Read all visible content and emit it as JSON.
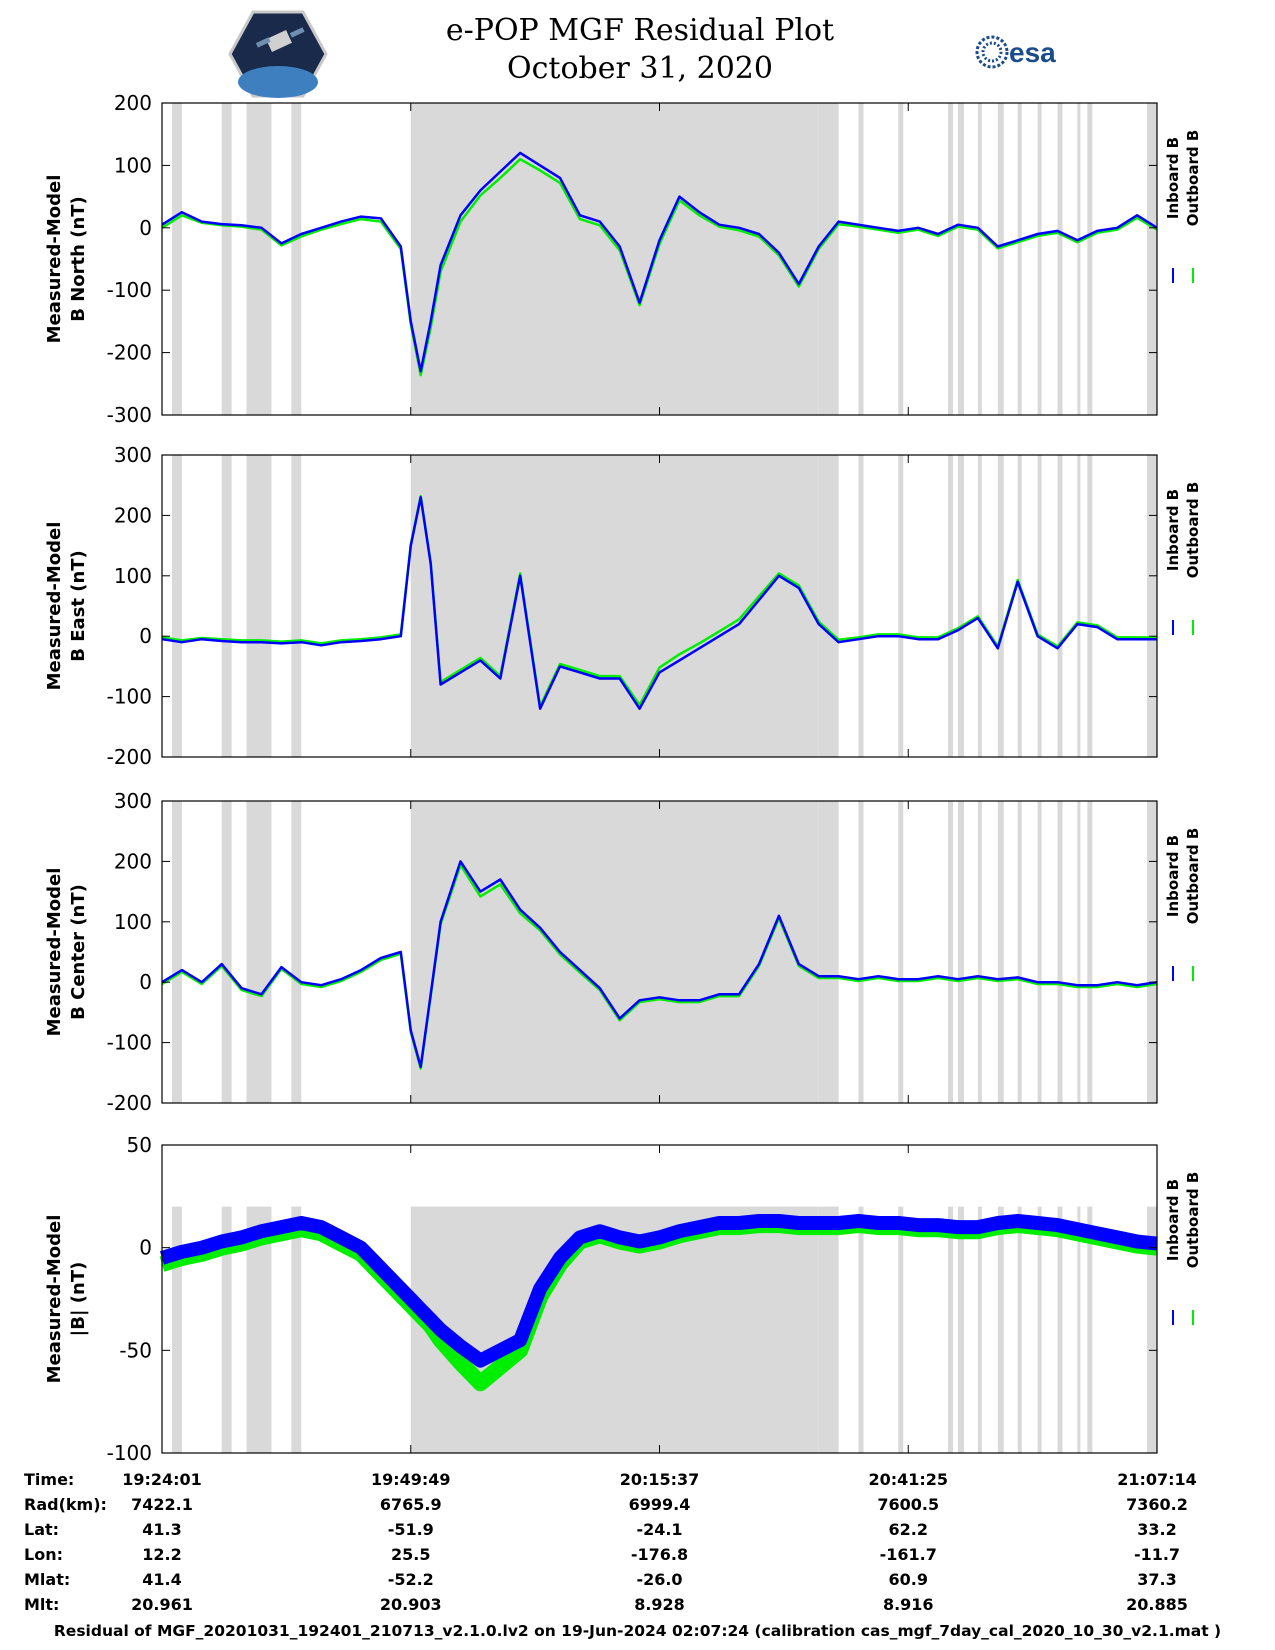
{
  "header": {
    "title_line1": "e-POP MGF Residual Plot",
    "title_line2": "October 31, 2020",
    "left_logo": "cassiope-mission-badge",
    "right_logo_text": "esa"
  },
  "colors": {
    "inboard": "#0000ff",
    "outboard": "#00ee00",
    "shade": "#d9d9d9",
    "axis": "#000000"
  },
  "chart_data": [
    {
      "type": "line",
      "ylabel_line1": "Measured-Model",
      "ylabel_line2": "B North (nT)",
      "ylim": [
        -300,
        200
      ],
      "yticks": [
        "200",
        "100",
        "0",
        "-100",
        "-200",
        "-300"
      ],
      "legend": [
        "Inboard B",
        "Outboard B"
      ],
      "x": [
        0,
        2,
        4,
        6,
        8,
        10,
        12,
        14,
        16,
        18,
        20,
        22,
        24,
        25,
        26,
        27,
        28,
        30,
        32,
        34,
        36,
        38,
        40,
        42,
        44,
        46,
        48,
        50,
        52,
        54,
        56,
        58,
        60,
        62,
        64,
        66,
        68,
        70,
        72,
        74,
        76,
        78,
        80,
        82,
        84,
        86,
        88,
        90,
        92,
        94,
        96,
        98,
        100
      ],
      "series": [
        {
          "name": "Inboard B",
          "values": [
            5,
            25,
            10,
            6,
            4,
            0,
            -25,
            -10,
            0,
            10,
            18,
            15,
            -30,
            -150,
            -230,
            -150,
            -60,
            20,
            60,
            90,
            120,
            100,
            80,
            20,
            10,
            -30,
            -120,
            -20,
            50,
            25,
            5,
            0,
            -10,
            -40,
            -90,
            -30,
            10,
            5,
            0,
            -5,
            0,
            -10,
            5,
            0,
            -30,
            -20,
            -10,
            -5,
            -20,
            -5,
            0,
            20,
            0
          ]
        },
        {
          "name": "Outboard B",
          "values": [
            0,
            20,
            8,
            4,
            2,
            -3,
            -28,
            -14,
            -3,
            6,
            14,
            10,
            -34,
            -155,
            -236,
            -160,
            -70,
            10,
            52,
            80,
            110,
            92,
            72,
            14,
            4,
            -36,
            -124,
            -26,
            44,
            20,
            2,
            -4,
            -14,
            -44,
            -94,
            -34,
            6,
            2,
            -3,
            -8,
            -3,
            -13,
            2,
            -3,
            -33,
            -23,
            -13,
            -8,
            -23,
            -8,
            -3,
            16,
            -3
          ]
        }
      ]
    },
    {
      "type": "line",
      "ylabel_line1": "Measured-Model",
      "ylabel_line2": "B East (nT)",
      "ylim": [
        -200,
        300
      ],
      "yticks": [
        "300",
        "200",
        "100",
        "0",
        "-100",
        "-200"
      ],
      "legend": [
        "Inboard B",
        "Outboard B"
      ],
      "x": [
        0,
        2,
        4,
        6,
        8,
        10,
        12,
        14,
        16,
        18,
        20,
        22,
        24,
        25,
        26,
        27,
        28,
        30,
        32,
        34,
        36,
        38,
        40,
        42,
        44,
        46,
        48,
        50,
        52,
        54,
        56,
        58,
        60,
        62,
        64,
        66,
        68,
        70,
        72,
        74,
        76,
        78,
        80,
        82,
        84,
        86,
        88,
        90,
        92,
        94,
        96,
        98,
        100
      ],
      "series": [
        {
          "name": "Inboard B",
          "values": [
            -5,
            -10,
            -5,
            -8,
            -10,
            -10,
            -12,
            -10,
            -15,
            -10,
            -8,
            -5,
            0,
            150,
            230,
            120,
            -80,
            -60,
            -40,
            -70,
            100,
            -120,
            -50,
            -60,
            -70,
            -70,
            -120,
            -60,
            -40,
            -20,
            0,
            20,
            60,
            100,
            80,
            20,
            -10,
            -5,
            0,
            0,
            -5,
            -5,
            10,
            30,
            -20,
            90,
            0,
            -20,
            20,
            15,
            -5,
            -5,
            -5
          ]
        },
        {
          "name": "Outboard B",
          "values": [
            -2,
            -7,
            -3,
            -5,
            -7,
            -7,
            -9,
            -7,
            -12,
            -7,
            -5,
            -2,
            3,
            152,
            232,
            122,
            -76,
            -56,
            -36,
            -66,
            104,
            -116,
            -46,
            -56,
            -66,
            -66,
            -114,
            -52,
            -30,
            -12,
            8,
            28,
            66,
            104,
            84,
            24,
            -6,
            -2,
            3,
            3,
            -2,
            -2,
            13,
            33,
            -17,
            93,
            3,
            -17,
            23,
            18,
            -2,
            -2,
            -2
          ]
        }
      ]
    },
    {
      "type": "line",
      "ylabel_line1": "Measured-Model",
      "ylabel_line2": "B Center (nT)",
      "ylim": [
        -200,
        300
      ],
      "yticks": [
        "300",
        "200",
        "100",
        "0",
        "-100",
        "-200"
      ],
      "legend": [
        "Inboard B",
        "Outboard B"
      ],
      "x": [
        0,
        2,
        4,
        6,
        8,
        10,
        12,
        14,
        16,
        18,
        20,
        22,
        24,
        25,
        26,
        27,
        28,
        30,
        32,
        34,
        36,
        38,
        40,
        42,
        44,
        46,
        48,
        50,
        52,
        54,
        56,
        58,
        60,
        62,
        64,
        66,
        68,
        70,
        72,
        74,
        76,
        78,
        80,
        82,
        84,
        86,
        88,
        90,
        92,
        94,
        96,
        98,
        100
      ],
      "series": [
        {
          "name": "Inboard B",
          "values": [
            0,
            20,
            0,
            30,
            -10,
            -20,
            25,
            0,
            -5,
            5,
            20,
            40,
            50,
            -80,
            -140,
            -20,
            100,
            200,
            150,
            170,
            120,
            90,
            50,
            20,
            -10,
            -60,
            -30,
            -25,
            -30,
            -30,
            -20,
            -20,
            30,
            110,
            30,
            10,
            10,
            5,
            10,
            5,
            5,
            10,
            5,
            10,
            5,
            8,
            0,
            0,
            -5,
            -5,
            0,
            -5,
            0
          ]
        },
        {
          "name": "Outboard B",
          "values": [
            -3,
            17,
            -3,
            27,
            -13,
            -23,
            22,
            -3,
            -8,
            2,
            17,
            37,
            47,
            -83,
            -143,
            -23,
            96,
            194,
            142,
            162,
            114,
            86,
            46,
            16,
            -13,
            -63,
            -33,
            -28,
            -33,
            -33,
            -23,
            -23,
            27,
            106,
            27,
            7,
            7,
            2,
            7,
            2,
            2,
            7,
            2,
            7,
            2,
            5,
            -3,
            -3,
            -8,
            -8,
            -3,
            -8,
            -3
          ]
        }
      ]
    },
    {
      "type": "line",
      "ylabel_line1": "Measured-Model",
      "ylabel_line2": "|B| (nT)",
      "ylim": [
        -100,
        50
      ],
      "yticks": [
        "50",
        "0",
        "-50",
        "-100"
      ],
      "legend": [
        "Inboard B",
        "Outboard B"
      ],
      "x": [
        0,
        2,
        4,
        6,
        8,
        10,
        12,
        14,
        16,
        18,
        20,
        22,
        24,
        25,
        26,
        27,
        28,
        30,
        32,
        34,
        36,
        38,
        40,
        42,
        44,
        46,
        48,
        50,
        52,
        54,
        56,
        58,
        60,
        62,
        64,
        66,
        68,
        70,
        72,
        74,
        76,
        78,
        80,
        82,
        84,
        86,
        88,
        90,
        92,
        94,
        96,
        98,
        100
      ],
      "series": [
        {
          "name": "Inboard B",
          "values": [
            -5,
            -2,
            0,
            3,
            5,
            8,
            10,
            12,
            10,
            5,
            0,
            -10,
            -20,
            -25,
            -30,
            -35,
            -40,
            -48,
            -55,
            -50,
            -45,
            -20,
            -5,
            5,
            8,
            5,
            3,
            5,
            8,
            10,
            12,
            12,
            13,
            13,
            12,
            12,
            12,
            13,
            12,
            12,
            11,
            11,
            10,
            10,
            12,
            13,
            12,
            11,
            9,
            7,
            5,
            3,
            2
          ]
        },
        {
          "name": "Outboard B",
          "values": [
            -8,
            -5,
            -3,
            0,
            2,
            5,
            7,
            9,
            7,
            2,
            -3,
            -13,
            -23,
            -28,
            -33,
            -38,
            -45,
            -56,
            -66,
            -58,
            -50,
            -24,
            -8,
            3,
            6,
            3,
            1,
            3,
            6,
            8,
            10,
            10,
            11,
            11,
            10,
            10,
            10,
            11,
            10,
            10,
            9,
            9,
            8,
            8,
            10,
            11,
            10,
            9,
            7,
            5,
            3,
            1,
            0
          ]
        }
      ]
    }
  ],
  "x_axis": {
    "tick_labels": [
      "19:24:01",
      "19:49:49",
      "20:15:37",
      "20:41:25",
      "21:07:14"
    ]
  },
  "shading": {
    "description_free_note": "",
    "bands": [
      [
        1,
        2
      ],
      [
        6,
        7
      ],
      [
        8.5,
        11
      ],
      [
        13,
        14
      ],
      [
        25,
        66
      ],
      [
        66,
        68
      ],
      [
        70,
        70.5
      ],
      [
        74,
        74.5
      ],
      [
        79,
        79.5
      ],
      [
        80,
        80.6
      ],
      [
        82,
        82.4
      ],
      [
        84,
        84.6
      ],
      [
        86,
        86.4
      ],
      [
        88,
        88.4
      ],
      [
        90,
        90.5
      ],
      [
        92,
        92.3
      ],
      [
        93,
        93.5
      ],
      [
        99,
        100
      ]
    ]
  },
  "info_table": {
    "labels": [
      "Time:",
      "Rad(km):",
      "Lat:",
      "Lon:",
      "Mlat:",
      "Mlt:"
    ],
    "columns": [
      [
        "19:24:01",
        "7422.1",
        "41.3",
        "12.2",
        "41.4",
        "20.961"
      ],
      [
        "19:49:49",
        "6765.9",
        "-51.9",
        "25.5",
        "-52.2",
        "20.903"
      ],
      [
        "20:15:37",
        "6999.4",
        "-24.1",
        "-176.8",
        "-26.0",
        "8.928"
      ],
      [
        "20:41:25",
        "7600.5",
        "62.2",
        "-161.7",
        "60.9",
        "8.916"
      ],
      [
        "21:07:14",
        "7360.2",
        "33.2",
        "-11.7",
        "37.3",
        "20.885"
      ]
    ]
  },
  "footer": "Residual of MGF_20201031_192401_210713_v2.1.0.lv2 on 19-Jun-2024 02:07:24 (calibration cas_mgf_7day_cal_2020_10_30_v2.1.mat )"
}
